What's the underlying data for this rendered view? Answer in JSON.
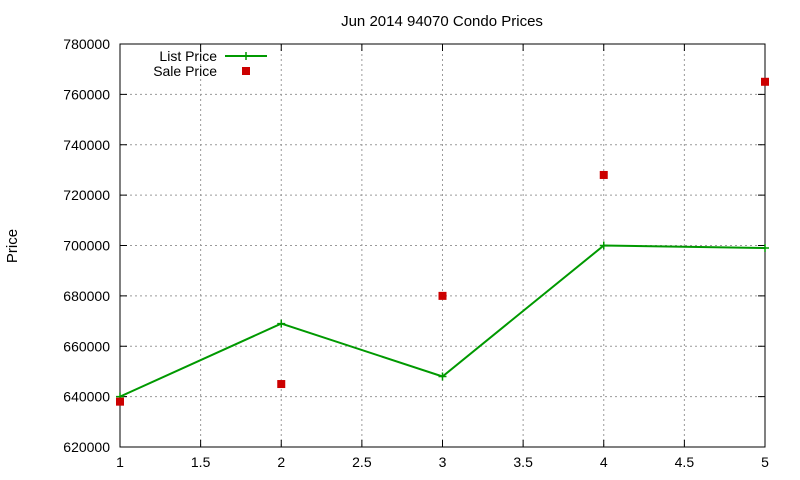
{
  "chart_data": {
    "type": "line",
    "title": "Jun 2014 94070 Condo Prices",
    "xlabel": "",
    "ylabel": "Price",
    "xlim": [
      1,
      5
    ],
    "ylim": [
      620000,
      780000
    ],
    "x_ticks": [
      "1",
      "1.5",
      "2",
      "2.5",
      "3",
      "3.5",
      "4",
      "4.5",
      "5"
    ],
    "y_ticks": [
      "620000",
      "640000",
      "660000",
      "680000",
      "700000",
      "720000",
      "740000",
      "760000",
      "780000"
    ],
    "grid": true,
    "legend_position": "top-left",
    "series": [
      {
        "name": "List Price",
        "style": "line-plus",
        "color": "#009900",
        "x": [
          1,
          2,
          3,
          4,
          5
        ],
        "values": [
          640000,
          669000,
          648000,
          700000,
          699000
        ]
      },
      {
        "name": "Sale Price",
        "style": "square",
        "color": "#cc0000",
        "x": [
          1,
          2,
          3,
          4,
          5
        ],
        "values": [
          638000,
          645000,
          680000,
          728000,
          765000
        ]
      }
    ]
  }
}
